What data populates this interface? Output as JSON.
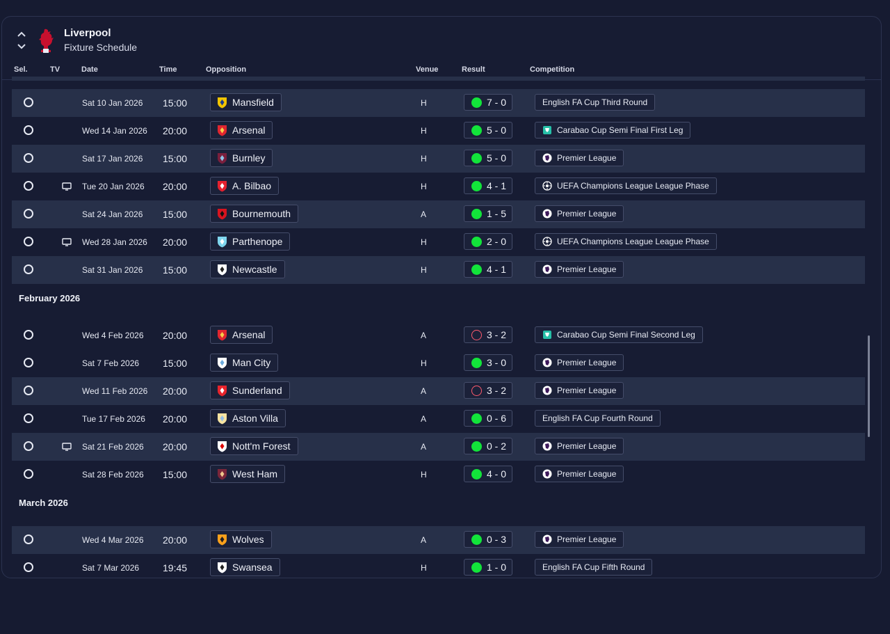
{
  "header": {
    "club_name": "Liverpool",
    "screen_title": "Fixture Schedule"
  },
  "columns": {
    "sel": "Sel.",
    "tv": "TV",
    "date": "Date",
    "time": "Time",
    "opposition": "Opposition",
    "venue": "Venue",
    "result": "Result",
    "competition": "Competition"
  },
  "months": [
    "February 2026",
    "March 2026"
  ],
  "fixtures": [
    {
      "date": "Sat 10 Jan 2026",
      "time": "15:00",
      "opponent": "Mansfield",
      "badge": "mansfield-badge-icon",
      "venue": "H",
      "result": "win",
      "score": "7 - 0",
      "competition": "English FA Cup Third Round",
      "comp_icon": "",
      "tv": false
    },
    {
      "date": "Wed 14 Jan 2026",
      "time": "20:00",
      "opponent": "Arsenal",
      "badge": "arsenal-badge-icon",
      "venue": "H",
      "result": "win",
      "score": "5 - 0",
      "competition": "Carabao Cup Semi Final First Leg",
      "comp_icon": "carabao-cup-icon",
      "tv": false
    },
    {
      "date": "Sat 17 Jan 2026",
      "time": "15:00",
      "opponent": "Burnley",
      "badge": "burnley-badge-icon",
      "venue": "H",
      "result": "win",
      "score": "5 - 0",
      "competition": "Premier League",
      "comp_icon": "premier-league-icon",
      "tv": false
    },
    {
      "date": "Tue 20 Jan 2026",
      "time": "20:00",
      "opponent": "A. Bilbao",
      "badge": "bilbao-badge-icon",
      "venue": "H",
      "result": "win",
      "score": "4 - 1",
      "competition": "UEFA Champions League League Phase",
      "comp_icon": "champions-league-icon",
      "tv": true
    },
    {
      "date": "Sat 24 Jan 2026",
      "time": "15:00",
      "opponent": "Bournemouth",
      "badge": "bournemouth-badge-icon",
      "venue": "A",
      "result": "win",
      "score": "1 - 5",
      "competition": "Premier League",
      "comp_icon": "premier-league-icon",
      "tv": false
    },
    {
      "date": "Wed 28 Jan 2026",
      "time": "20:00",
      "opponent": "Parthenope",
      "badge": "parthenope-badge-icon",
      "venue": "H",
      "result": "win",
      "score": "2 - 0",
      "competition": "UEFA Champions League League Phase",
      "comp_icon": "champions-league-icon",
      "tv": true
    },
    {
      "date": "Sat 31 Jan 2026",
      "time": "15:00",
      "opponent": "Newcastle",
      "badge": "newcastle-badge-icon",
      "venue": "H",
      "result": "win",
      "score": "4 - 1",
      "competition": "Premier League",
      "comp_icon": "premier-league-icon",
      "tv": false
    },
    {
      "date": "Wed 4 Feb 2026",
      "time": "20:00",
      "opponent": "Arsenal",
      "badge": "arsenal-badge-icon",
      "venue": "A",
      "result": "loss",
      "score": "3 - 2",
      "competition": "Carabao Cup Semi Final Second Leg",
      "comp_icon": "carabao-cup-icon",
      "tv": false
    },
    {
      "date": "Sat 7 Feb 2026",
      "time": "15:00",
      "opponent": "Man City",
      "badge": "man-city-badge-icon",
      "venue": "H",
      "result": "win",
      "score": "3 - 0",
      "competition": "Premier League",
      "comp_icon": "premier-league-icon",
      "tv": false
    },
    {
      "date": "Wed 11 Feb 2026",
      "time": "20:00",
      "opponent": "Sunderland",
      "badge": "sunderland-badge-icon",
      "venue": "A",
      "result": "loss",
      "score": "3 - 2",
      "competition": "Premier League",
      "comp_icon": "premier-league-icon",
      "tv": false
    },
    {
      "date": "Tue 17 Feb 2026",
      "time": "20:00",
      "opponent": "Aston Villa",
      "badge": "aston-villa-badge-icon",
      "venue": "A",
      "result": "win",
      "score": "0 - 6",
      "competition": "English FA Cup Fourth Round",
      "comp_icon": "",
      "tv": false
    },
    {
      "date": "Sat 21 Feb 2026",
      "time": "20:00",
      "opponent": "Nott'm Forest",
      "badge": "forest-badge-icon",
      "venue": "A",
      "result": "win",
      "score": "0 - 2",
      "competition": "Premier League",
      "comp_icon": "premier-league-icon",
      "tv": true
    },
    {
      "date": "Sat 28 Feb 2026",
      "time": "15:00",
      "opponent": "West Ham",
      "badge": "west-ham-badge-icon",
      "venue": "H",
      "result": "win",
      "score": "4 - 0",
      "competition": "Premier League",
      "comp_icon": "premier-league-icon",
      "tv": false
    },
    {
      "date": "Wed 4 Mar 2026",
      "time": "20:00",
      "opponent": "Wolves",
      "badge": "wolves-badge-icon",
      "venue": "A",
      "result": "win",
      "score": "0 - 3",
      "competition": "Premier League",
      "comp_icon": "premier-league-icon",
      "tv": false
    },
    {
      "date": "Sat 7 Mar 2026",
      "time": "19:45",
      "opponent": "Swansea",
      "badge": "swansea-badge-icon",
      "venue": "H",
      "result": "win",
      "score": "1 - 0",
      "competition": "English FA Cup Fifth Round",
      "comp_icon": "",
      "tv": false
    }
  ],
  "colors": {
    "win": "#12e43a",
    "loss": "#ff5b6e",
    "background": "#161b31",
    "row_alt": "#273049"
  }
}
